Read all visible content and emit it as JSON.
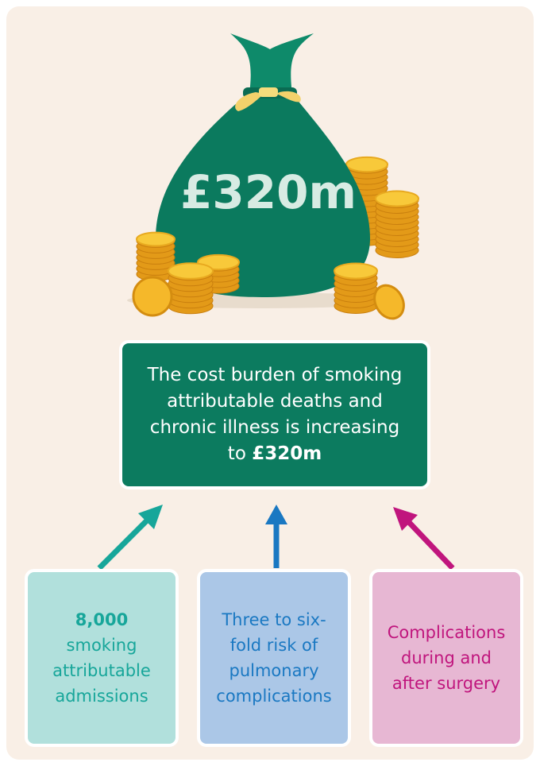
{
  "bag_label": "£320m",
  "main_box": {
    "text": "The cost burden of smoking attributable deaths and chronic illness is increasing to",
    "bold": "£320m"
  },
  "boxes": [
    {
      "bold": "8,000",
      "text": "smoking attributable admissions"
    },
    {
      "text": "Three to six-fold risk of pulmonary complications"
    },
    {
      "text": "Complications during and after surgery"
    }
  ]
}
